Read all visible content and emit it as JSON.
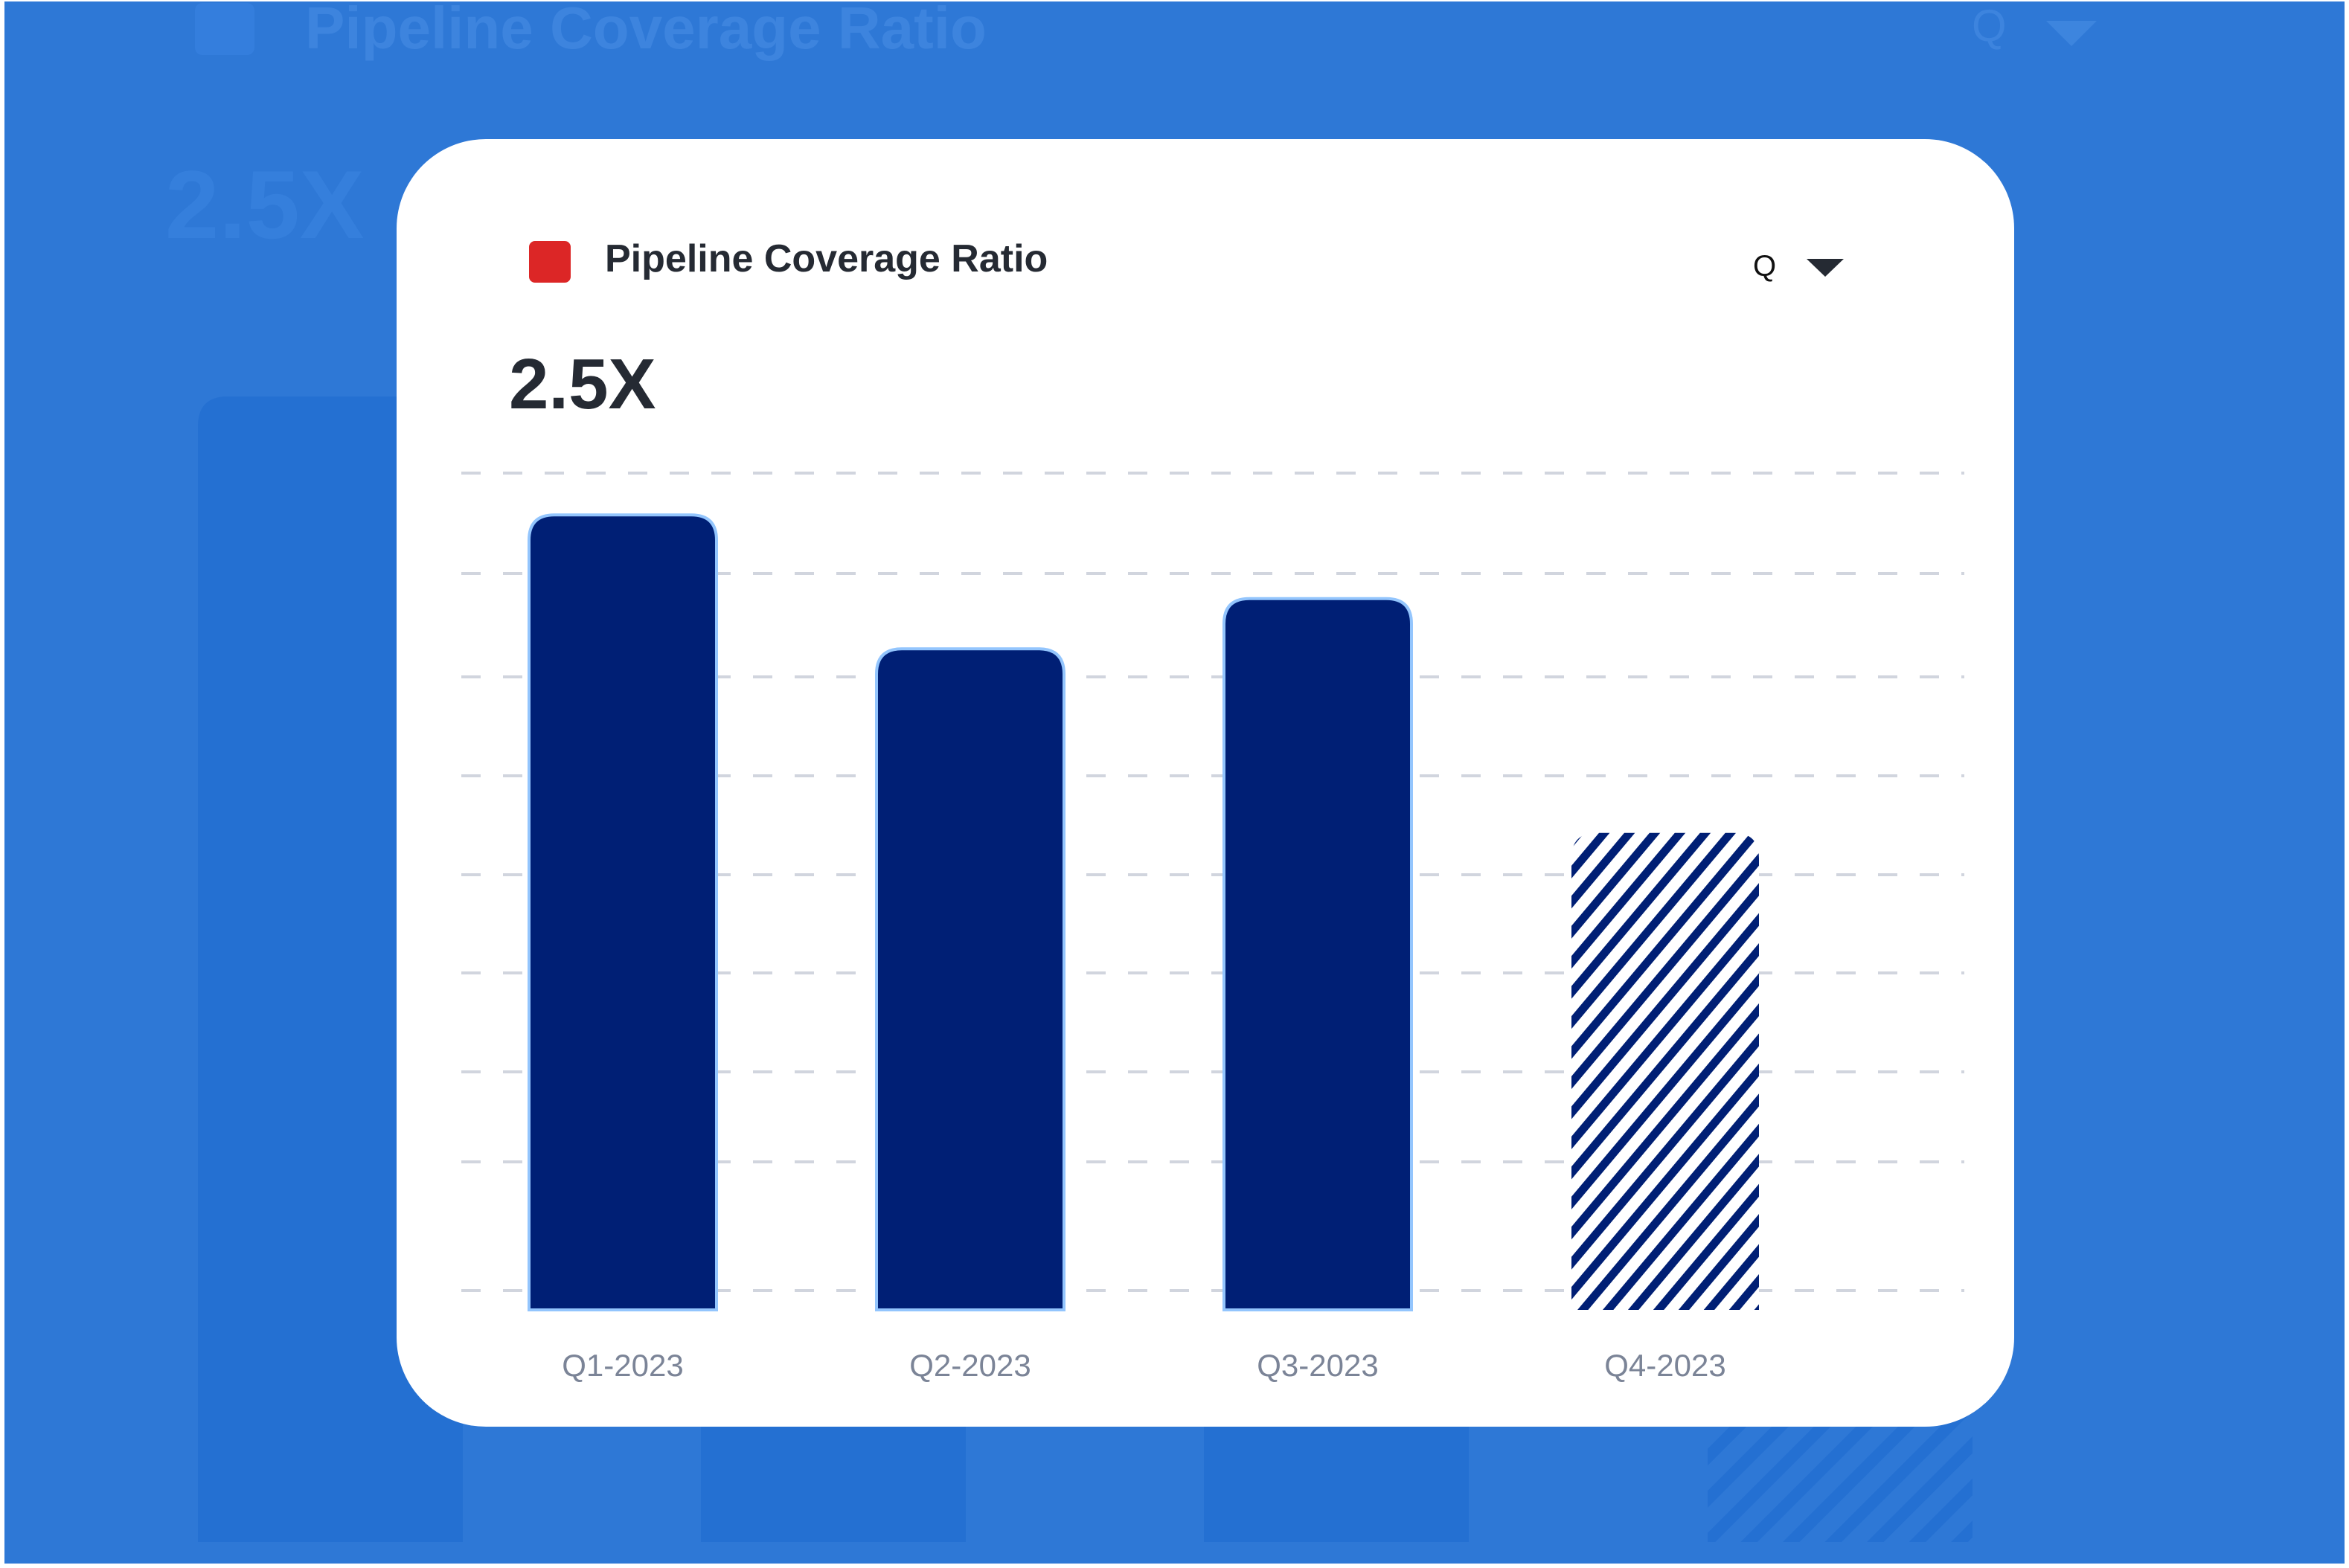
{
  "header": {
    "title": "Pipeline Coverage Ratio",
    "period_selector": "Q",
    "kpi_value": "2.5X"
  },
  "colors": {
    "background": "#2e78d6",
    "legend_swatch": "#dc2626",
    "bar_fill": "#001f75",
    "bar_outline": "#93c5fd",
    "forecast_hatch": "#001f75",
    "gridline": "#d1d5de",
    "axis_label": "#7b8497"
  },
  "icons": {
    "legend": "red-square-swatch",
    "dropdown": "caret-down-icon"
  },
  "chart_data": {
    "type": "bar",
    "title": "Pipeline Coverage Ratio",
    "categories": [
      "Q1-2023",
      "Q2-2023",
      "Q3-2023",
      "Q4-2023"
    ],
    "values": [
      0.95,
      0.79,
      0.85,
      0.57
    ],
    "styles": [
      "solid",
      "solid",
      "solid",
      "hatched"
    ],
    "ylim": [
      0,
      1
    ],
    "y_ticks_labeled": false,
    "grid": "horizontal-dashed",
    "xlabel": "",
    "ylabel": ""
  }
}
